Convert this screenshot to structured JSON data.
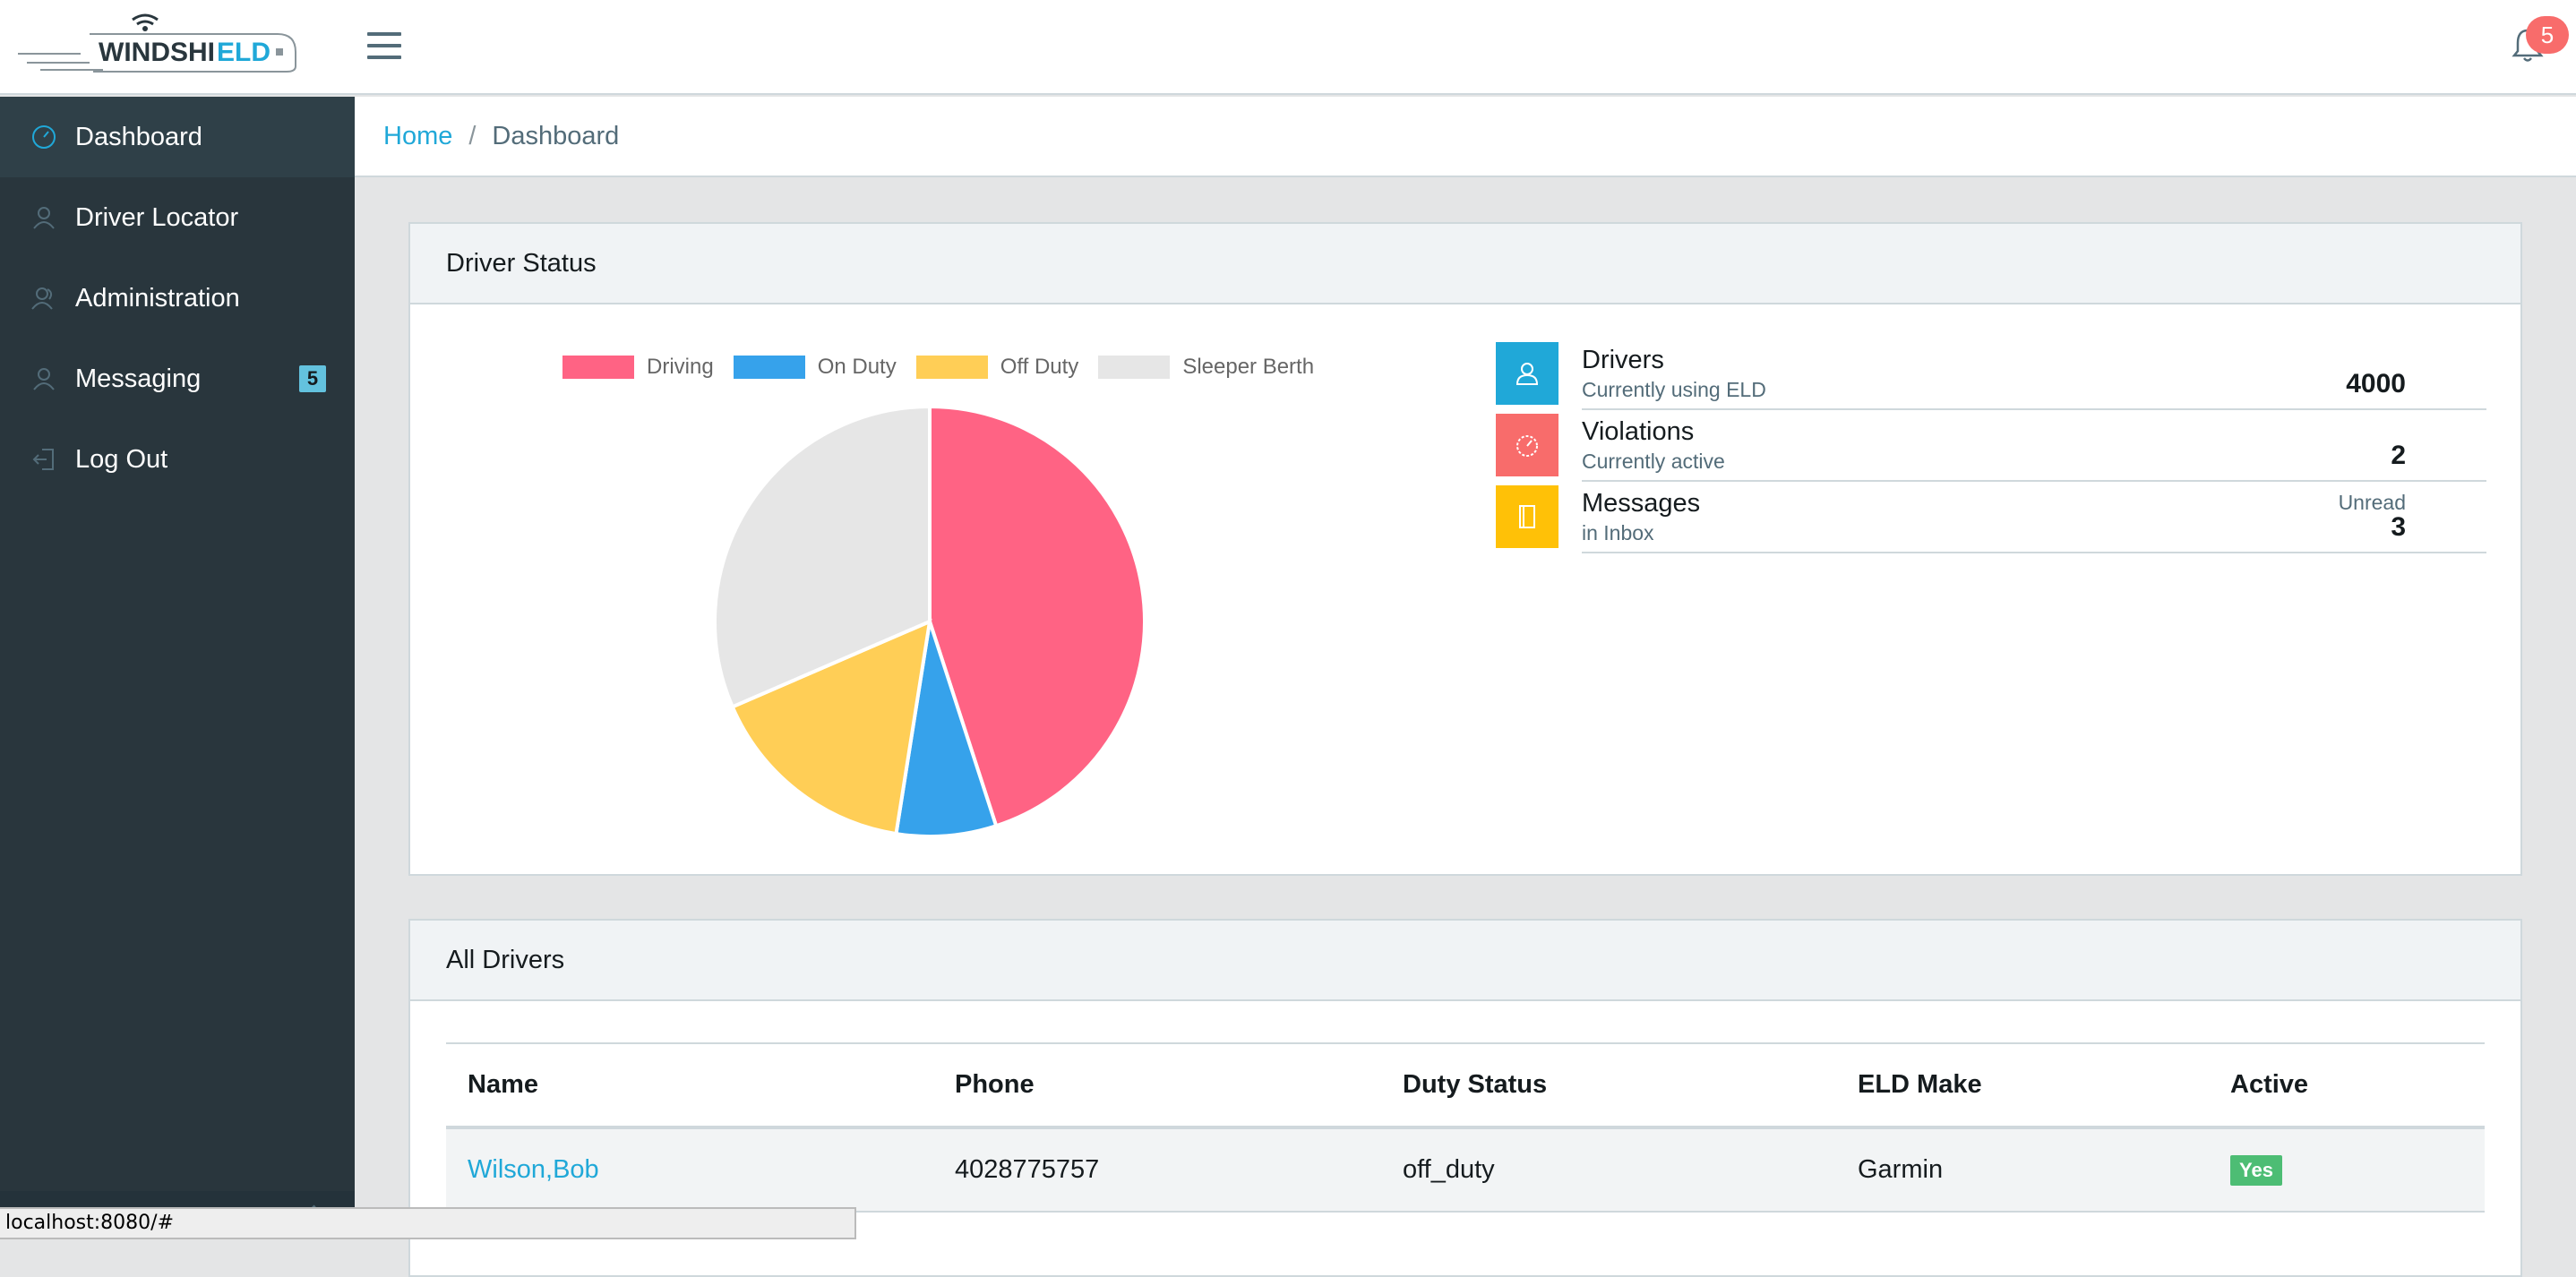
{
  "header": {
    "logo_text": "WINDSHIELD",
    "notifications_count": "5"
  },
  "sidebar": {
    "items": [
      {
        "label": "Dashboard",
        "icon": "speedometer-icon",
        "active": true
      },
      {
        "label": "Driver Locator",
        "icon": "user-icon"
      },
      {
        "label": "Administration",
        "icon": "users-icon"
      },
      {
        "label": "Messaging",
        "icon": "user-icon",
        "badge": "5"
      },
      {
        "label": "Log Out",
        "icon": "logout-icon"
      }
    ]
  },
  "breadcrumb": {
    "home": "Home",
    "separator": "/",
    "current": "Dashboard"
  },
  "driver_status": {
    "title": "Driver Status",
    "legend": [
      {
        "label": "Driving",
        "color": "#ff6384"
      },
      {
        "label": "On Duty",
        "color": "#36a2eb"
      },
      {
        "label": "Off Duty",
        "color": "#ffce56"
      },
      {
        "label": "Sleeper Berth",
        "color": "#e6e6e6"
      }
    ],
    "chart_data": {
      "type": "pie",
      "categories": [
        "Driving",
        "On Duty",
        "Off Duty",
        "Sleeper Berth"
      ],
      "values": [
        45,
        7.5,
        16,
        31.5
      ],
      "colors": [
        "#ff6384",
        "#36a2eb",
        "#ffce56",
        "#e6e6e6"
      ],
      "legend_position": "top"
    },
    "stats": [
      {
        "title": "Drivers",
        "subtitle": "Currently using ELD",
        "value": "4000",
        "value_label": "",
        "color": "#20a8d8",
        "icon": "user-icon"
      },
      {
        "title": "Violations",
        "subtitle": "Currently active",
        "value": "2",
        "value_label": "",
        "color": "#f86c6b",
        "icon": "speedometer-icon"
      },
      {
        "title": "Messages",
        "subtitle": "in Inbox",
        "value": "3",
        "value_label": "Unread",
        "color": "#ffc107",
        "icon": "notebook-icon"
      }
    ]
  },
  "all_drivers": {
    "title": "All Drivers",
    "columns": [
      "Name",
      "Phone",
      "Duty Status",
      "ELD Make",
      "Active"
    ],
    "rows": [
      {
        "name": "Wilson,Bob",
        "phone": "4028775757",
        "duty_status": "off_duty",
        "eld_make": "Garmin",
        "active": "Yes"
      }
    ]
  },
  "statusbar": {
    "url": "localhost:8080/#"
  }
}
